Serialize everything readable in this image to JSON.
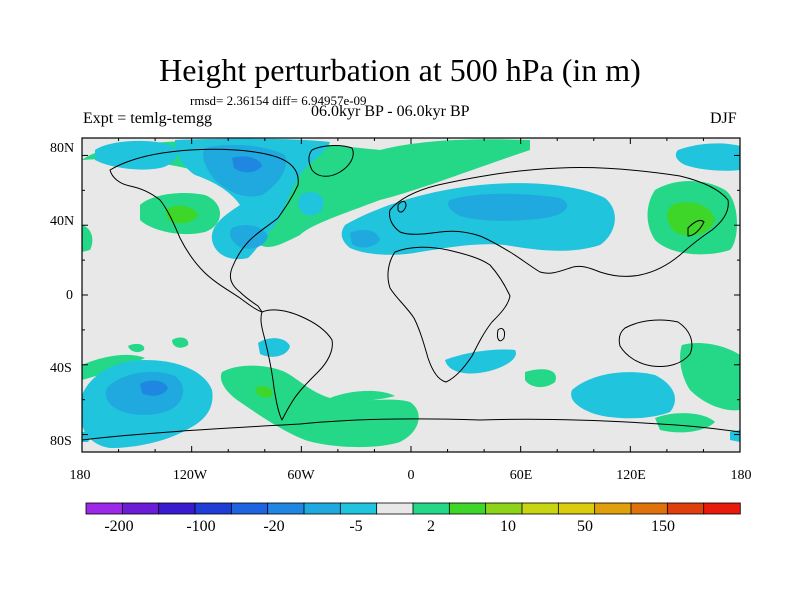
{
  "title": "Height perturbation at 500 hPa (in m)",
  "stats": "rmsd= 2.36154 diff= 6.94957e-09",
  "experiment": "Expt = temlg-temgg",
  "period": "06.0kyr BP - 06.0kyr BP",
  "season": "DJF",
  "lat_labels": [
    "80N",
    "40N",
    "0",
    "40S",
    "80S"
  ],
  "lon_labels": [
    "180",
    "120W",
    "60W",
    "0",
    "60E",
    "120E",
    "180"
  ],
  "colorbar": {
    "labels": [
      "-200",
      "-100",
      "-20",
      "-5",
      "2",
      "10",
      "50",
      "150"
    ],
    "colors": [
      "#9d29e8",
      "#6b1cd6",
      "#3a1ad0",
      "#1f3ed8",
      "#1e63e0",
      "#1f87e2",
      "#1fa9de",
      "#20c4dc",
      "#e8e8e8",
      "#25d887",
      "#3dd629",
      "#8dd418",
      "#c8d512",
      "#dccc10",
      "#e0a00e",
      "#e0720c",
      "#df3f0b",
      "#e81a0a"
    ]
  },
  "map": {
    "background": "#e8e8e8",
    "lat_range": [
      -90,
      90
    ],
    "lon_range": [
      -180,
      180
    ]
  }
}
